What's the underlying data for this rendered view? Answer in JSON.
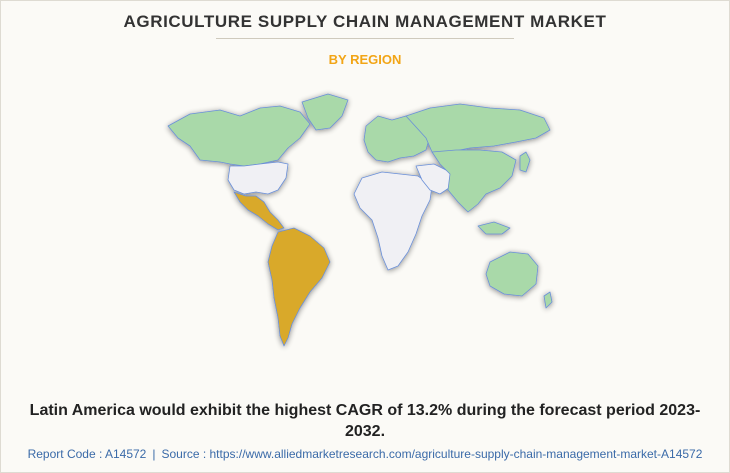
{
  "header": {
    "title": "AGRICULTURE SUPPLY CHAIN MANAGEMENT MARKET",
    "subtitle": "BY REGION"
  },
  "map": {
    "highlight_color": "#d9a92c",
    "region_color": "#a9d9a9",
    "other_color": "#f0f0f4",
    "border_color": "#6a8fd8"
  },
  "caption": "Latin America would exhibit the highest CAGR of 13.2% during the forecast period 2023-2032.",
  "footer": {
    "report_code": "Report Code : A14572",
    "separator": "|",
    "source": "Source : https://www.alliedmarketresearch.com/agriculture-supply-chain-management-market-A14572"
  }
}
